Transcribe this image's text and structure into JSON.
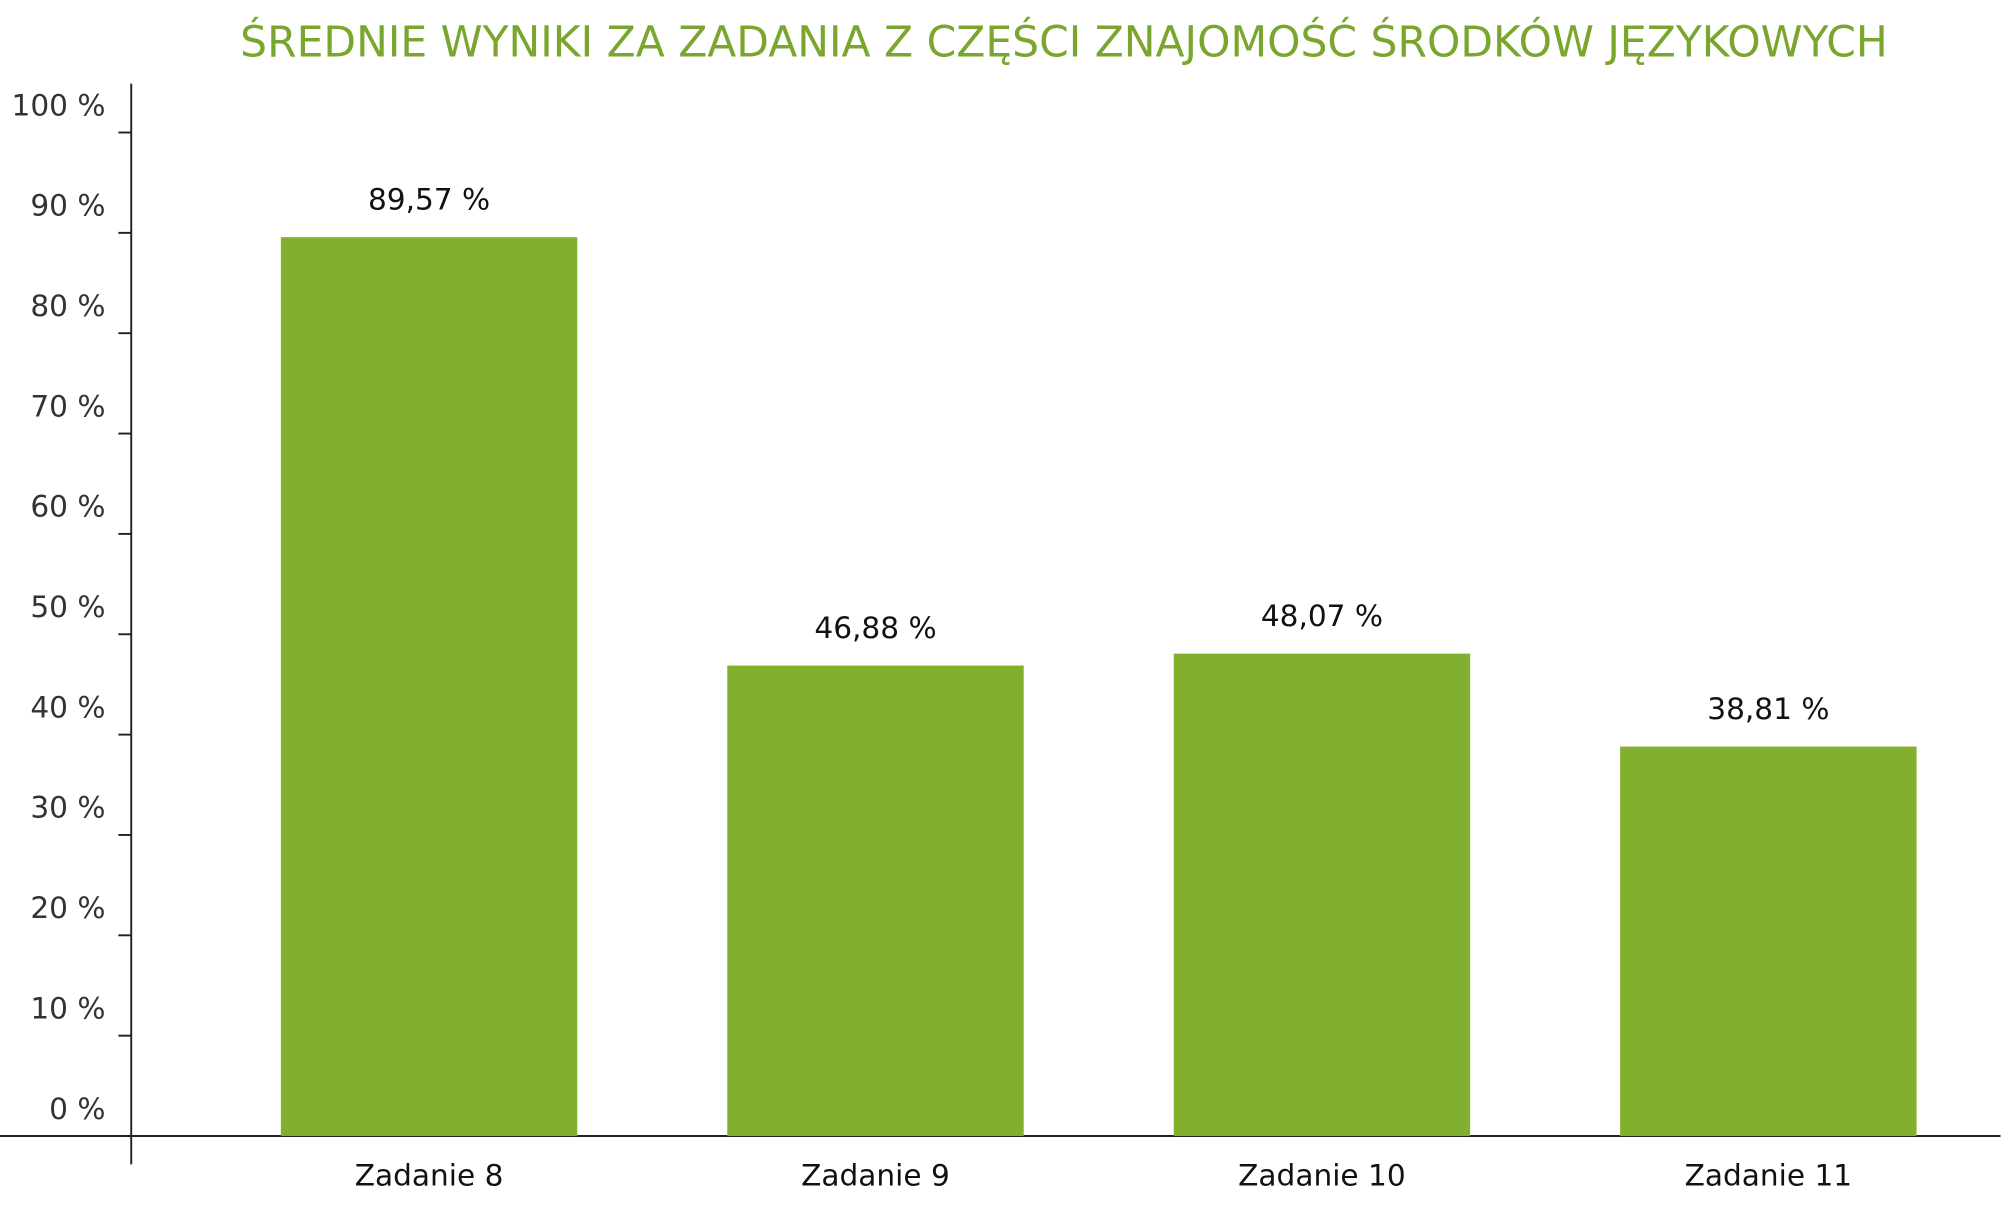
{
  "chart_data": {
    "type": "bar",
    "title": "ŚREDNIE WYNIKI ZA ZADANIA Z CZĘŚCI ZNAJOMOŚĆ ŚRODKÓW JĘZYKOWYCH",
    "categories": [
      "Zadanie 8",
      "Zadanie 9",
      "Zadanie 10",
      "Zadanie 11"
    ],
    "values": [
      89.57,
      46.88,
      48.07,
      38.81
    ],
    "value_labels": [
      "89,57 %",
      "46,88 %",
      "48,07 %",
      "38,81 %"
    ],
    "color": "#82af2d",
    "ylim": [
      0,
      100
    ],
    "yticks": [
      {
        "value": 0,
        "label": "0 %"
      },
      {
        "value": 10,
        "label": "10 %"
      },
      {
        "value": 20,
        "label": "20 %"
      },
      {
        "value": 30,
        "label": "30 %"
      },
      {
        "value": 40,
        "label": "40 %"
      },
      {
        "value": 50,
        "label": "50 %"
      },
      {
        "value": 60,
        "label": "60 %"
      },
      {
        "value": 70,
        "label": "70 %"
      },
      {
        "value": 80,
        "label": "80 %"
      },
      {
        "value": 90,
        "label": "90 %"
      },
      {
        "value": 100,
        "label": "100 %"
      }
    ],
    "grid": false
  }
}
